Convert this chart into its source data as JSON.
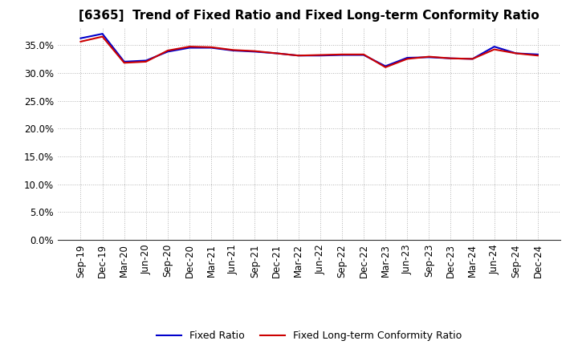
{
  "title": "[6365]  Trend of Fixed Ratio and Fixed Long-term Conformity Ratio",
  "x_labels": [
    "Sep-19",
    "Dec-19",
    "Mar-20",
    "Jun-20",
    "Sep-20",
    "Dec-20",
    "Mar-21",
    "Jun-21",
    "Sep-21",
    "Dec-21",
    "Mar-22",
    "Jun-22",
    "Sep-22",
    "Dec-22",
    "Mar-23",
    "Jun-23",
    "Sep-23",
    "Dec-23",
    "Mar-24",
    "Jun-24",
    "Sep-24",
    "Dec-24"
  ],
  "fixed_ratio": [
    36.2,
    37.0,
    32.0,
    32.2,
    33.8,
    34.5,
    34.5,
    34.0,
    33.8,
    33.5,
    33.1,
    33.1,
    33.2,
    33.2,
    31.2,
    32.7,
    32.8,
    32.6,
    32.5,
    34.7,
    33.5,
    33.3
  ],
  "fixed_lt_conformity": [
    35.6,
    36.5,
    31.8,
    32.0,
    34.0,
    34.7,
    34.6,
    34.1,
    33.9,
    33.5,
    33.1,
    33.2,
    33.3,
    33.3,
    31.0,
    32.5,
    32.9,
    32.6,
    32.5,
    34.2,
    33.5,
    33.1
  ],
  "fixed_ratio_color": "#0000cc",
  "fixed_lt_color": "#cc0000",
  "ylim": [
    0,
    38
  ],
  "yticks": [
    0.0,
    5.0,
    10.0,
    15.0,
    20.0,
    25.0,
    30.0,
    35.0
  ],
  "background_color": "#ffffff",
  "grid_color": "#aaaaaa",
  "legend_fixed_ratio": "Fixed Ratio",
  "legend_fixed_lt": "Fixed Long-term Conformity Ratio",
  "title_fontsize": 11,
  "tick_fontsize": 8.5,
  "linewidth": 1.5
}
